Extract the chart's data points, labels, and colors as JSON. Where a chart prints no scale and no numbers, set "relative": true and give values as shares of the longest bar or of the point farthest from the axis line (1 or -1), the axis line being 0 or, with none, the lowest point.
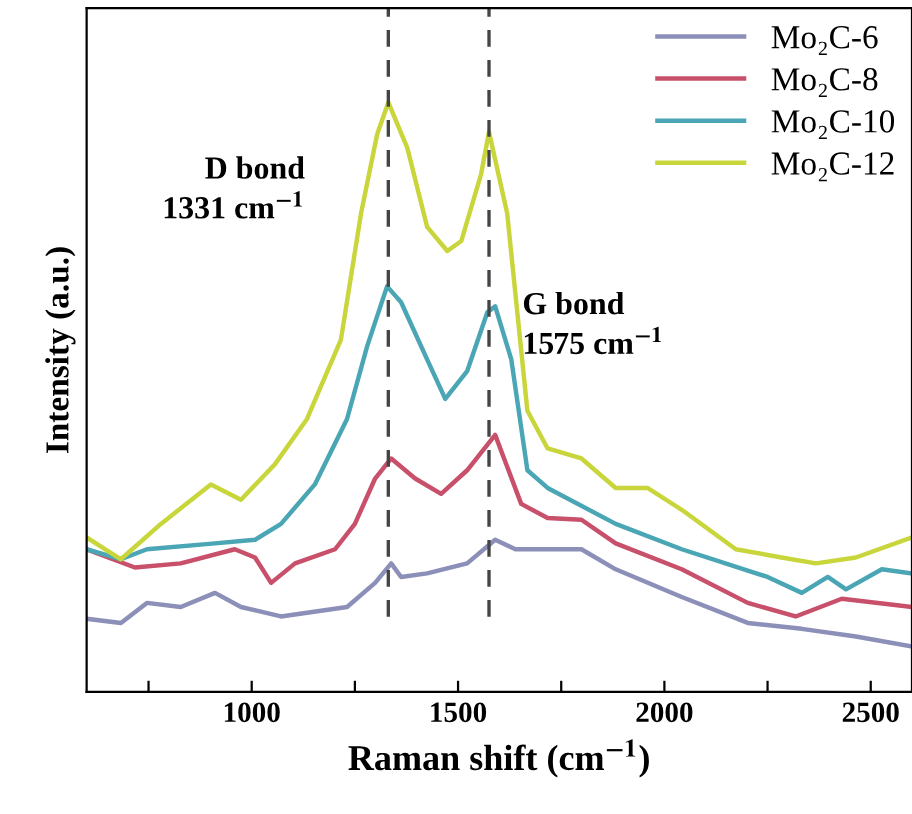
{
  "chart_data": {
    "type": "line",
    "relative": true,
    "xlabel": "Raman shift (cm$^{−1}$)",
    "ylabel": "Intensity (a.u.)",
    "xlim": [
      600,
      2600
    ],
    "xticks": [
      {
        "value": 750,
        "label": null
      },
      1000,
      {
        "value": 1250,
        "label": null
      },
      1500,
      {
        "value": 1750,
        "label": null
      },
      2000,
      {
        "value": 2250,
        "label": null
      },
      2500
    ],
    "tick_labels": "x",
    "legend": "top right",
    "line_style": "solid",
    "ref_lines": [
      {
        "axis": "x",
        "value": 1331,
        "color": "#444444",
        "line_style": "dashed"
      },
      {
        "axis": "x",
        "value": 1575,
        "color": "#444444",
        "line_style": "dashed"
      }
    ],
    "annotations": [
      {
        "text": "D bond\n1331 cm$^{−1}$",
        "x": 1331,
        "y": 0.85
      },
      {
        "text": "G bond\n1575 cm$^{−1}$",
        "x": 1575,
        "y": 0.62
      }
    ],
    "series": [
      {
        "name": "Mo₂C-6",
        "color": "#8c8fb8",
        "x": [
          600,
          683,
          746,
          828,
          911,
          974,
          1071,
          1231,
          1299,
          1338,
          1362,
          1425,
          1522,
          1590,
          1639,
          1799,
          1882,
          2042,
          2202,
          2333,
          2464,
          2600
        ],
        "values": [
          0.124,
          0.117,
          0.151,
          0.144,
          0.168,
          0.144,
          0.128,
          0.144,
          0.185,
          0.218,
          0.195,
          0.201,
          0.218,
          0.258,
          0.242,
          0.242,
          0.208,
          0.161,
          0.117,
          0.107,
          0.094,
          0.077
        ]
      },
      {
        "name": "Mo₂C-8",
        "color": "#c8506a",
        "x": [
          600,
          717,
          828,
          959,
          1008,
          1047,
          1105,
          1202,
          1250,
          1299,
          1338,
          1396,
          1459,
          1522,
          1590,
          1653,
          1717,
          1799,
          1882,
          2042,
          2202,
          2318,
          2430,
          2600
        ],
        "values": [
          0.242,
          0.211,
          0.218,
          0.242,
          0.228,
          0.185,
          0.218,
          0.242,
          0.285,
          0.362,
          0.396,
          0.362,
          0.336,
          0.376,
          0.436,
          0.319,
          0.295,
          0.292,
          0.252,
          0.208,
          0.151,
          0.128,
          0.158,
          0.144
        ]
      },
      {
        "name": "Mo₂C-10",
        "color": "#4aa6b4",
        "x": [
          600,
          683,
          746,
          911,
          1008,
          1071,
          1153,
          1231,
          1280,
          1328,
          1362,
          1425,
          1469,
          1522,
          1571,
          1590,
          1629,
          1668,
          1717,
          1882,
          2042,
          2250,
          2333,
          2396,
          2440,
          2527,
          2600
        ],
        "values": [
          0.242,
          0.225,
          0.242,
          0.252,
          0.258,
          0.285,
          0.352,
          0.463,
          0.587,
          0.688,
          0.661,
          0.564,
          0.497,
          0.544,
          0.644,
          0.654,
          0.564,
          0.376,
          0.346,
          0.285,
          0.242,
          0.195,
          0.168,
          0.195,
          0.174,
          0.208,
          0.201
        ]
      },
      {
        "name": "Mo₂C-12",
        "color": "#c8d63c",
        "x": [
          600,
          683,
          780,
          901,
          974,
          1056,
          1134,
          1216,
          1265,
          1304,
          1331,
          1377,
          1425,
          1474,
          1508,
          1556,
          1575,
          1619,
          1668,
          1717,
          1799,
          1882,
          1959,
          2042,
          2173,
          2284,
          2367,
          2464,
          2600
        ],
        "values": [
          0.262,
          0.225,
          0.285,
          0.352,
          0.326,
          0.386,
          0.463,
          0.597,
          0.812,
          0.946,
          1.0,
          0.923,
          0.789,
          0.748,
          0.765,
          0.879,
          0.95,
          0.812,
          0.477,
          0.413,
          0.396,
          0.346,
          0.346,
          0.309,
          0.242,
          0.228,
          0.218,
          0.228,
          0.262
        ]
      }
    ]
  }
}
